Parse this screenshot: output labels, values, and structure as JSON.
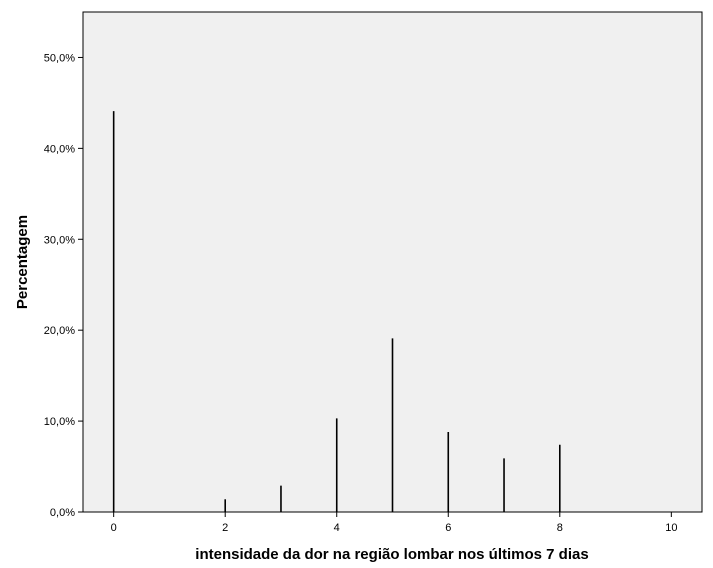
{
  "chart_data": {
    "type": "bar",
    "title": "",
    "xlabel": "intensidade da dor na região lombar nos últimos 7 dias",
    "ylabel": "Percentagem",
    "x": [
      0,
      2,
      3,
      4,
      5,
      6,
      7,
      8
    ],
    "values": [
      44.1,
      1.4,
      2.9,
      10.3,
      19.1,
      8.8,
      5.9,
      7.4
    ],
    "xlim": [
      -0.55,
      10.55
    ],
    "ylim": [
      0,
      55
    ],
    "xticks": [
      0,
      2,
      4,
      6,
      8,
      10
    ],
    "xtick_labels": [
      "0",
      "2",
      "4",
      "6",
      "8",
      "10"
    ],
    "yticks": [
      0,
      10,
      20,
      30,
      40,
      50
    ],
    "ytick_labels": [
      "0,0%",
      "10,0%",
      "20,0%",
      "30,0%",
      "40,0%",
      "50,0%"
    ],
    "grid": false,
    "legend": "none",
    "plot_background": "#f0f0f0",
    "bar_color": "#000000"
  }
}
